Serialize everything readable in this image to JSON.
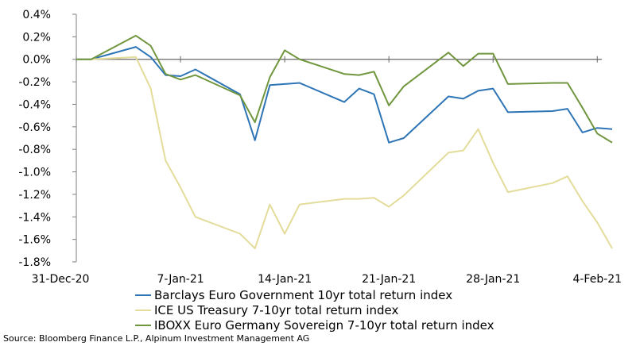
{
  "chart_data": {
    "type": "line",
    "title": "",
    "xlabel": "",
    "ylabel": "",
    "ylim": [
      -0.018,
      0.004
    ],
    "y_tick_values": [
      0.004,
      0.002,
      0.0,
      -0.002,
      -0.004,
      -0.006,
      -0.008,
      -0.01,
      -0.012,
      -0.014,
      -0.016,
      -0.018
    ],
    "y_tick_labels": [
      "0.4%",
      "0.2%",
      "0.0%",
      "-0.2%",
      "-0.4%",
      "-0.6%",
      "-0.8%",
      "-1.0%",
      "-1.2%",
      "-1.4%",
      "-1.6%",
      "-1.8%"
    ],
    "x_range": [
      "2020-12-31",
      "2021-02-05"
    ],
    "x_ticks": [
      {
        "date": "2020-12-31",
        "label": "31-Dec-20"
      },
      {
        "date": "2021-01-07",
        "label": "7-Jan-21"
      },
      {
        "date": "2021-01-14",
        "label": "14-Jan-21"
      },
      {
        "date": "2021-01-21",
        "label": "21-Jan-21"
      },
      {
        "date": "2021-01-28",
        "label": "28-Jan-21"
      },
      {
        "date": "2021-02-04",
        "label": "4-Feb-21"
      }
    ],
    "grid": false,
    "legend_position": "bottom",
    "series": [
      {
        "name": "Barclays Euro Government 10yr total return index",
        "color": "#2e75b6",
        "points": [
          [
            "2020-12-31",
            0.0
          ],
          [
            "2021-01-01",
            0.0
          ],
          [
            "2021-01-04",
            0.0011
          ],
          [
            "2021-01-05",
            0.0002
          ],
          [
            "2021-01-06",
            -0.0014
          ],
          [
            "2021-01-07",
            -0.0015
          ],
          [
            "2021-01-08",
            -0.0009
          ],
          [
            "2021-01-11",
            -0.0031
          ],
          [
            "2021-01-12",
            -0.0072
          ],
          [
            "2021-01-13",
            -0.0023
          ],
          [
            "2021-01-14",
            -0.0022
          ],
          [
            "2021-01-15",
            -0.0021
          ],
          [
            "2021-01-18",
            -0.0038
          ],
          [
            "2021-01-19",
            -0.0026
          ],
          [
            "2021-01-20",
            -0.0031
          ],
          [
            "2021-01-21",
            -0.0074
          ],
          [
            "2021-01-22",
            -0.007
          ],
          [
            "2021-01-25",
            -0.0033
          ],
          [
            "2021-01-26",
            -0.0035
          ],
          [
            "2021-01-27",
            -0.0028
          ],
          [
            "2021-01-28",
            -0.0026
          ],
          [
            "2021-01-29",
            -0.0047
          ],
          [
            "2021-02-01",
            -0.0046
          ],
          [
            "2021-02-02",
            -0.0044
          ],
          [
            "2021-02-03",
            -0.0065
          ],
          [
            "2021-02-04",
            -0.0061
          ],
          [
            "2021-02-05",
            -0.0062
          ]
        ]
      },
      {
        "name": "ICE US Treasury 7-10yr total return index",
        "color": "#e3dc9a",
        "points": [
          [
            "2020-12-31",
            0.0
          ],
          [
            "2021-01-01",
            0.0
          ],
          [
            "2021-01-04",
            0.0002
          ],
          [
            "2021-01-05",
            -0.0026
          ],
          [
            "2021-01-06",
            -0.009
          ],
          [
            "2021-01-07",
            -0.0114
          ],
          [
            "2021-01-08",
            -0.014
          ],
          [
            "2021-01-11",
            -0.0155
          ],
          [
            "2021-01-12",
            -0.0168
          ],
          [
            "2021-01-13",
            -0.0129
          ],
          [
            "2021-01-14",
            -0.0155
          ],
          [
            "2021-01-15",
            -0.0129
          ],
          [
            "2021-01-18",
            -0.0124
          ],
          [
            "2021-01-19",
            -0.0124
          ],
          [
            "2021-01-20",
            -0.0123
          ],
          [
            "2021-01-21",
            -0.0131
          ],
          [
            "2021-01-22",
            -0.0121
          ],
          [
            "2021-01-25",
            -0.0083
          ],
          [
            "2021-01-26",
            -0.0081
          ],
          [
            "2021-01-27",
            -0.0062
          ],
          [
            "2021-01-28",
            -0.0092
          ],
          [
            "2021-01-29",
            -0.0118
          ],
          [
            "2021-02-01",
            -0.011
          ],
          [
            "2021-02-02",
            -0.0104
          ],
          [
            "2021-02-03",
            -0.0126
          ],
          [
            "2021-02-04",
            -0.0145
          ],
          [
            "2021-02-05",
            -0.0168
          ]
        ]
      },
      {
        "name": "IBOXX Euro Germany Sovereign 7-10yr total return index",
        "color": "#70963e",
        "points": [
          [
            "2020-12-31",
            0.0
          ],
          [
            "2021-01-01",
            0.0
          ],
          [
            "2021-01-04",
            0.0021
          ],
          [
            "2021-01-05",
            0.0012
          ],
          [
            "2021-01-06",
            -0.0013
          ],
          [
            "2021-01-07",
            -0.0018
          ],
          [
            "2021-01-08",
            -0.0014
          ],
          [
            "2021-01-11",
            -0.0032
          ],
          [
            "2021-01-12",
            -0.0056
          ],
          [
            "2021-01-13",
            -0.0016
          ],
          [
            "2021-01-14",
            0.0008
          ],
          [
            "2021-01-15",
            0.0
          ],
          [
            "2021-01-18",
            -0.0013
          ],
          [
            "2021-01-19",
            -0.0014
          ],
          [
            "2021-01-20",
            -0.0011
          ],
          [
            "2021-01-21",
            -0.0041
          ],
          [
            "2021-01-22",
            -0.0024
          ],
          [
            "2021-01-25",
            0.0006
          ],
          [
            "2021-01-26",
            -0.0006
          ],
          [
            "2021-01-27",
            0.0005
          ],
          [
            "2021-01-28",
            0.0005
          ],
          [
            "2021-01-29",
            -0.0022
          ],
          [
            "2021-02-01",
            -0.0021
          ],
          [
            "2021-02-02",
            -0.0021
          ],
          [
            "2021-02-03",
            -0.0043
          ],
          [
            "2021-02-04",
            -0.0066
          ],
          [
            "2021-02-05",
            -0.0074
          ]
        ]
      }
    ]
  },
  "source": "Source: Bloomberg Finance L.P., Alpinum Investment Management AG"
}
